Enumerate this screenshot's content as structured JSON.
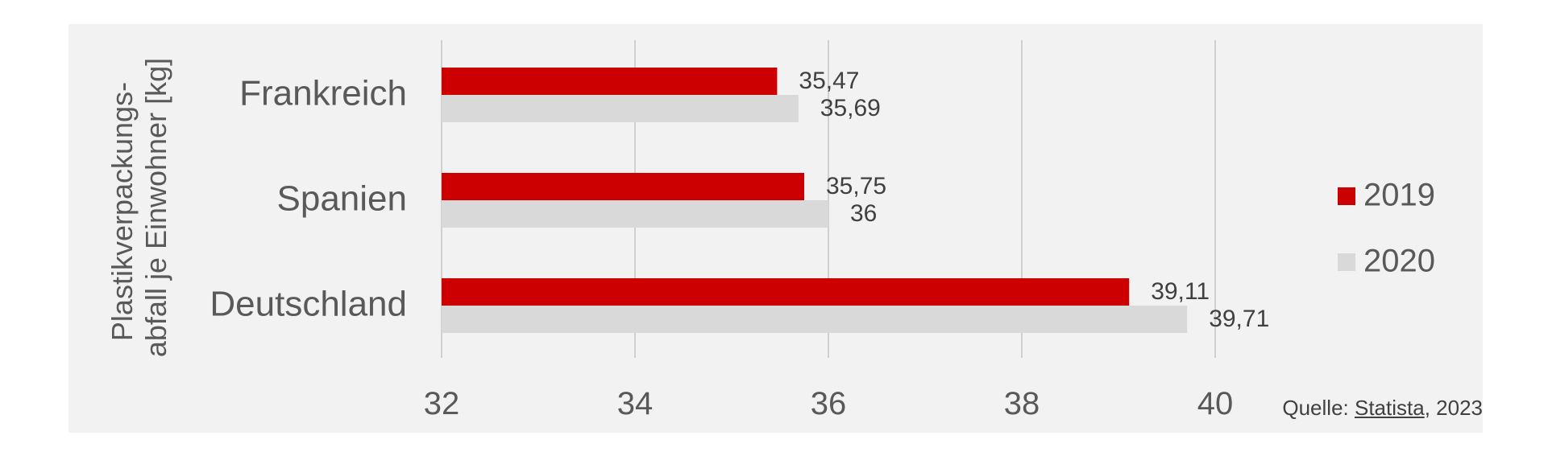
{
  "chart_data": {
    "type": "bar",
    "orientation": "horizontal",
    "categories": [
      "Frankreich",
      "Spanien",
      "Deutschland"
    ],
    "series": [
      {
        "name": "2019",
        "color": "#cc0000",
        "values": [
          35.47,
          35.75,
          39.11
        ],
        "labels": [
          "35,47",
          "35,75",
          "39,11"
        ]
      },
      {
        "name": "2020",
        "color": "#d9d9d9",
        "values": [
          35.69,
          36,
          39.71
        ],
        "labels": [
          "35,69",
          "36",
          "39,71"
        ]
      }
    ],
    "ylabel_lines": [
      "Plastikverpackungs-",
      "abfall je Einwohner [kg]"
    ],
    "xlim": [
      32,
      40
    ],
    "xticks": [
      32,
      34,
      36,
      38,
      40
    ],
    "grid": true,
    "legend": "right"
  },
  "source": {
    "prefix": "Quelle: ",
    "link_text": "Statista",
    "suffix": ", 2023"
  }
}
